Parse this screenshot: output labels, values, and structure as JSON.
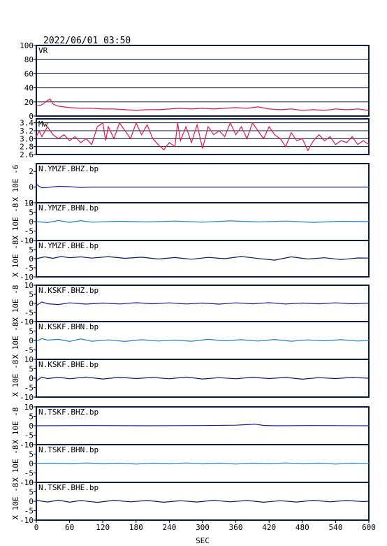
{
  "header": {
    "datetime": "2022/06/01 03:50"
  },
  "chart_data": {
    "type": "line",
    "xlabel": "SEC",
    "xlim": [
      0,
      600
    ],
    "xticks": [
      "0",
      "60",
      "120",
      "180",
      "240",
      "300",
      "360",
      "420",
      "480",
      "540",
      "600"
    ],
    "panels": [
      {
        "label": "VR",
        "ylim": [
          0,
          100
        ],
        "yticks": [
          "0",
          "20",
          "40",
          "60",
          "80",
          "100"
        ],
        "ylabel": "",
        "color": "#e8174a",
        "grid": true,
        "series": [
          [
            0,
            14
          ],
          [
            10,
            16
          ],
          [
            20,
            22
          ],
          [
            25,
            24
          ],
          [
            30,
            17
          ],
          [
            40,
            14
          ],
          [
            50,
            13
          ],
          [
            60,
            12
          ],
          [
            80,
            11
          ],
          [
            100,
            11
          ],
          [
            120,
            10
          ],
          [
            140,
            10
          ],
          [
            160,
            9
          ],
          [
            180,
            8
          ],
          [
            200,
            9
          ],
          [
            220,
            9
          ],
          [
            240,
            10
          ],
          [
            260,
            11
          ],
          [
            280,
            10
          ],
          [
            300,
            11
          ],
          [
            320,
            10
          ],
          [
            340,
            11
          ],
          [
            360,
            12
          ],
          [
            380,
            11
          ],
          [
            400,
            13
          ],
          [
            420,
            10
          ],
          [
            440,
            9
          ],
          [
            460,
            10
          ],
          [
            480,
            8
          ],
          [
            500,
            9
          ],
          [
            520,
            8
          ],
          [
            540,
            10
          ],
          [
            560,
            9
          ],
          [
            580,
            10
          ],
          [
            600,
            8
          ]
        ]
      },
      {
        "label": "Mw",
        "ylim": [
          2.6,
          3.5
        ],
        "yticks": [
          "2.6",
          "2.8",
          "3.0",
          "3.2",
          "3.4"
        ],
        "ylabel": "",
        "color": "#e8174a",
        "grid": true,
        "series": [
          [
            0,
            3.05
          ],
          [
            5,
            3.2
          ],
          [
            10,
            3.05
          ],
          [
            20,
            3.3
          ],
          [
            30,
            3.1
          ],
          [
            40,
            3.0
          ],
          [
            50,
            3.1
          ],
          [
            60,
            2.95
          ],
          [
            70,
            3.05
          ],
          [
            80,
            2.9
          ],
          [
            90,
            3.0
          ],
          [
            100,
            2.85
          ],
          [
            110,
            3.3
          ],
          [
            120,
            3.4
          ],
          [
            125,
            2.95
          ],
          [
            130,
            3.3
          ],
          [
            140,
            3.0
          ],
          [
            150,
            3.4
          ],
          [
            160,
            3.2
          ],
          [
            170,
            3.0
          ],
          [
            180,
            3.4
          ],
          [
            190,
            3.1
          ],
          [
            200,
            3.35
          ],
          [
            210,
            3.0
          ],
          [
            220,
            2.85
          ],
          [
            230,
            2.72
          ],
          [
            240,
            2.9
          ],
          [
            250,
            2.8
          ],
          [
            255,
            3.4
          ],
          [
            260,
            2.95
          ],
          [
            270,
            3.3
          ],
          [
            280,
            2.9
          ],
          [
            290,
            3.35
          ],
          [
            300,
            2.75
          ],
          [
            310,
            3.3
          ],
          [
            320,
            3.1
          ],
          [
            330,
            3.2
          ],
          [
            340,
            3.05
          ],
          [
            350,
            3.4
          ],
          [
            360,
            3.1
          ],
          [
            370,
            3.3
          ],
          [
            380,
            3.0
          ],
          [
            390,
            3.4
          ],
          [
            400,
            3.2
          ],
          [
            410,
            3.0
          ],
          [
            420,
            3.3
          ],
          [
            430,
            3.1
          ],
          [
            440,
            3.0
          ],
          [
            450,
            2.8
          ],
          [
            460,
            3.15
          ],
          [
            470,
            2.95
          ],
          [
            480,
            3.0
          ],
          [
            490,
            2.7
          ],
          [
            500,
            2.95
          ],
          [
            510,
            3.1
          ],
          [
            520,
            2.95
          ],
          [
            530,
            3.05
          ],
          [
            540,
            2.85
          ],
          [
            550,
            2.95
          ],
          [
            560,
            2.9
          ],
          [
            570,
            3.05
          ],
          [
            580,
            2.85
          ],
          [
            590,
            2.95
          ],
          [
            600,
            2.85
          ]
        ]
      },
      {
        "label": "N.YMZF.BHZ.bp",
        "ylim": [
          -2,
          3
        ],
        "yticks": [
          "-2",
          "0",
          "2"
        ],
        "ylabel": "X 10E -6",
        "color": "#1a1aa0",
        "grid": false,
        "series": [
          [
            0,
            0.4
          ],
          [
            5,
            0.1
          ],
          [
            10,
            -0.1
          ],
          [
            20,
            -0.05
          ],
          [
            40,
            0.1
          ],
          [
            60,
            0.05
          ],
          [
            80,
            -0.05
          ],
          [
            100,
            0
          ],
          [
            600,
            0
          ]
        ]
      },
      {
        "label": "N.YMZF.BHN.bp",
        "ylim": [
          -10,
          10
        ],
        "yticks": [
          "-10",
          "-5",
          "0",
          "5",
          "10"
        ],
        "ylabel": "X 10E -8",
        "color": "#1a7fd4",
        "grid": false,
        "series": [
          [
            0,
            0
          ],
          [
            20,
            -0.5
          ],
          [
            40,
            0.6
          ],
          [
            60,
            -0.4
          ],
          [
            80,
            0.5
          ],
          [
            100,
            -0.3
          ],
          [
            150,
            0.2
          ],
          [
            200,
            -0.2
          ],
          [
            250,
            0.3
          ],
          [
            300,
            -0.3
          ],
          [
            350,
            0.4
          ],
          [
            400,
            -0.2
          ],
          [
            450,
            0.3
          ],
          [
            500,
            -0.4
          ],
          [
            550,
            0.2
          ],
          [
            600,
            0
          ]
        ]
      },
      {
        "label": "N.YMZF.BHE.bp",
        "ylim": [
          -10,
          10
        ],
        "yticks": [
          "-10",
          "-5",
          "0",
          "5",
          "10"
        ],
        "ylabel": "X 10E -8",
        "color": "#0a1a5a",
        "grid": false,
        "series": [
          [
            0,
            0
          ],
          [
            15,
            1
          ],
          [
            30,
            0.2
          ],
          [
            45,
            1.2
          ],
          [
            60,
            0.5
          ],
          [
            80,
            1
          ],
          [
            100,
            0.3
          ],
          [
            130,
            1.1
          ],
          [
            160,
            0.2
          ],
          [
            190,
            0.8
          ],
          [
            220,
            -0.2
          ],
          [
            250,
            0.6
          ],
          [
            280,
            -0.3
          ],
          [
            310,
            0.7
          ],
          [
            340,
            0
          ],
          [
            370,
            1.2
          ],
          [
            400,
            0.1
          ],
          [
            430,
            -0.8
          ],
          [
            460,
            1
          ],
          [
            490,
            -0.2
          ],
          [
            520,
            0.5
          ],
          [
            550,
            -0.5
          ],
          [
            580,
            0.4
          ],
          [
            600,
            0.3
          ]
        ]
      },
      {
        "label": "N.KSKF.BHZ.bp",
        "ylim": [
          -10,
          10
        ],
        "yticks": [
          "-10",
          "-5",
          "0",
          "5",
          "10"
        ],
        "ylabel": "X 10E -8",
        "color": "#1a1aa0",
        "grid": false,
        "series": [
          [
            0,
            -1.2
          ],
          [
            10,
            0.8
          ],
          [
            20,
            -0.2
          ],
          [
            40,
            -0.6
          ],
          [
            60,
            0.3
          ],
          [
            90,
            -0.4
          ],
          [
            120,
            0.2
          ],
          [
            150,
            -0.3
          ],
          [
            180,
            0.4
          ],
          [
            210,
            -0.2
          ],
          [
            240,
            0.3
          ],
          [
            270,
            -0.3
          ],
          [
            300,
            0.2
          ],
          [
            330,
            -0.4
          ],
          [
            360,
            0.3
          ],
          [
            390,
            -0.2
          ],
          [
            420,
            0.4
          ],
          [
            450,
            -0.3
          ],
          [
            480,
            0.2
          ],
          [
            510,
            -0.2
          ],
          [
            540,
            0.3
          ],
          [
            570,
            -0.2
          ],
          [
            600,
            0.1
          ]
        ]
      },
      {
        "label": "N.KSKF.BHN.bp",
        "ylim": [
          -10,
          10
        ],
        "yticks": [
          "-5",
          "0",
          "5",
          "10"
        ],
        "ylabel": "X 10E -8",
        "color": "#1a7fd4",
        "grid": false,
        "series": [
          [
            0,
            -0.5
          ],
          [
            10,
            1
          ],
          [
            20,
            0.2
          ],
          [
            40,
            0.6
          ],
          [
            60,
            -0.5
          ],
          [
            80,
            0.8
          ],
          [
            100,
            -0.4
          ],
          [
            130,
            0.3
          ],
          [
            160,
            -0.5
          ],
          [
            190,
            0.4
          ],
          [
            220,
            -0.3
          ],
          [
            250,
            0.2
          ],
          [
            280,
            -0.4
          ],
          [
            310,
            0.6
          ],
          [
            340,
            -0.2
          ],
          [
            370,
            0.4
          ],
          [
            400,
            -0.3
          ],
          [
            430,
            0.5
          ],
          [
            460,
            -0.4
          ],
          [
            490,
            0.3
          ],
          [
            520,
            -0.2
          ],
          [
            550,
            0.4
          ],
          [
            580,
            -0.3
          ],
          [
            600,
            0
          ]
        ]
      },
      {
        "label": "N.KSKF.BHE.bp",
        "ylim": [
          -10,
          10
        ],
        "yticks": [
          "-10",
          "-5",
          "0",
          "5",
          "10"
        ],
        "ylabel": "X 10E -8",
        "color": "#0a1a5a",
        "grid": false,
        "series": [
          [
            0,
            -1.5
          ],
          [
            10,
            0.6
          ],
          [
            20,
            -0.2
          ],
          [
            40,
            0.5
          ],
          [
            60,
            -0.3
          ],
          [
            90,
            0.6
          ],
          [
            120,
            -0.4
          ],
          [
            150,
            0.5
          ],
          [
            180,
            -0.2
          ],
          [
            210,
            0.4
          ],
          [
            240,
            -0.3
          ],
          [
            270,
            0.6
          ],
          [
            300,
            -0.4
          ],
          [
            330,
            0.3
          ],
          [
            360,
            -0.3
          ],
          [
            390,
            0.5
          ],
          [
            420,
            -0.2
          ],
          [
            450,
            0.4
          ],
          [
            480,
            -0.5
          ],
          [
            510,
            0.3
          ],
          [
            540,
            -0.2
          ],
          [
            570,
            0.4
          ],
          [
            600,
            0
          ]
        ]
      },
      {
        "label": "N.TSKF.BHZ.bp",
        "ylim": [
          -10,
          10
        ],
        "yticks": [
          "-10",
          "-5",
          "0",
          "5",
          "10"
        ],
        "ylabel": "X 10E -8",
        "color": "#1a1aa0",
        "grid": false,
        "series": [
          [
            0,
            0
          ],
          [
            100,
            0.1
          ],
          [
            200,
            0
          ],
          [
            300,
            0.1
          ],
          [
            360,
            0.3
          ],
          [
            380,
            0.6
          ],
          [
            395,
            0.8
          ],
          [
            410,
            0.2
          ],
          [
            430,
            0
          ],
          [
            500,
            0.1
          ],
          [
            600,
            0
          ]
        ]
      },
      {
        "label": "N.TSKF.BHN.bp",
        "ylim": [
          -10,
          10
        ],
        "yticks": [
          "-10",
          "-5",
          "0",
          "5",
          "10"
        ],
        "ylabel": "X 10E -8",
        "color": "#1a7fd4",
        "grid": false,
        "series": [
          [
            0,
            0
          ],
          [
            30,
            0.2
          ],
          [
            60,
            -0.2
          ],
          [
            90,
            0.3
          ],
          [
            120,
            -0.2
          ],
          [
            150,
            0.2
          ],
          [
            180,
            -0.3
          ],
          [
            210,
            0.2
          ],
          [
            240,
            -0.2
          ],
          [
            270,
            0.3
          ],
          [
            300,
            -0.2
          ],
          [
            330,
            0.2
          ],
          [
            360,
            -0.3
          ],
          [
            390,
            0.2
          ],
          [
            420,
            -0.2
          ],
          [
            450,
            0.3
          ],
          [
            480,
            -0.2
          ],
          [
            510,
            0.2
          ],
          [
            540,
            -0.3
          ],
          [
            570,
            0.2
          ],
          [
            600,
            0
          ]
        ]
      },
      {
        "label": "N.TSKF.BHE.bp",
        "ylim": [
          -10,
          10
        ],
        "yticks": [
          "-10",
          "-5",
          "0",
          "5",
          "10"
        ],
        "ylabel": "X 10E -8",
        "color": "#0a1a5a",
        "grid": false,
        "series": [
          [
            0,
            0.5
          ],
          [
            20,
            -0.4
          ],
          [
            40,
            0.6
          ],
          [
            60,
            -0.5
          ],
          [
            80,
            0.4
          ],
          [
            110,
            -0.6
          ],
          [
            140,
            0.5
          ],
          [
            170,
            -0.3
          ],
          [
            200,
            0.4
          ],
          [
            230,
            -0.5
          ],
          [
            260,
            0.3
          ],
          [
            290,
            -0.4
          ],
          [
            320,
            0.5
          ],
          [
            350,
            -0.3
          ],
          [
            380,
            0.4
          ],
          [
            410,
            -0.5
          ],
          [
            440,
            0.3
          ],
          [
            470,
            -0.4
          ],
          [
            500,
            0.5
          ],
          [
            530,
            -0.3
          ],
          [
            560,
            0.4
          ],
          [
            590,
            -0.2
          ],
          [
            600,
            0
          ]
        ]
      }
    ]
  }
}
